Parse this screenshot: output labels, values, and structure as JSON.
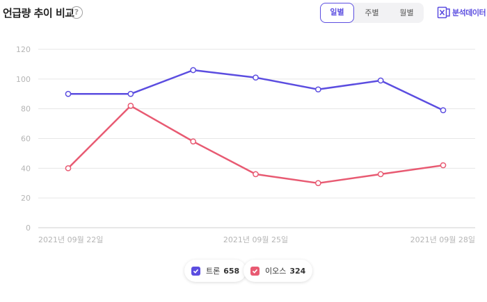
{
  "header": {
    "title": "언급량 추이 비교",
    "help_icon": "?",
    "period_tabs": [
      {
        "label": "일별",
        "active": true
      },
      {
        "label": "주별",
        "active": false
      },
      {
        "label": "월별",
        "active": false
      }
    ],
    "export_label": "분석데이터",
    "export_icon": "excel-icon"
  },
  "colors": {
    "accent": "#5b4de0",
    "series_1": "#5b4de0",
    "series_2": "#e85a72",
    "grid": "#e6e6e6",
    "axis_text": "#b5b5b5"
  },
  "legend": [
    {
      "name": "트론",
      "count": "658",
      "checked": true,
      "color": "#5b4de0"
    },
    {
      "name": "이오스",
      "count": "324",
      "checked": true,
      "color": "#e85a72"
    }
  ],
  "chart_data": {
    "type": "line",
    "title": "",
    "xlabel": "",
    "ylabel": "",
    "x": [
      "2021-09-22",
      "2021-09-23",
      "2021-09-24",
      "2021-09-25",
      "2021-09-26",
      "2021-09-27",
      "2021-09-28"
    ],
    "x_tick_labels": [
      {
        "index": 0,
        "label": "2021년 09월 22일"
      },
      {
        "index": 3,
        "label": "2021년 09월 25일"
      },
      {
        "index": 6,
        "label": "2021년 09월 28일"
      }
    ],
    "ylim": [
      0,
      120
    ],
    "yticks": [
      0,
      20,
      40,
      60,
      80,
      100,
      120
    ],
    "grid": true,
    "legend_position": "bottom-center",
    "series": [
      {
        "name": "트론",
        "color": "#5b4de0",
        "values": [
          90,
          90,
          106,
          101,
          93,
          99,
          79
        ]
      },
      {
        "name": "이오스",
        "color": "#e85a72",
        "values": [
          40,
          82,
          58,
          36,
          30,
          36,
          42
        ]
      }
    ]
  }
}
